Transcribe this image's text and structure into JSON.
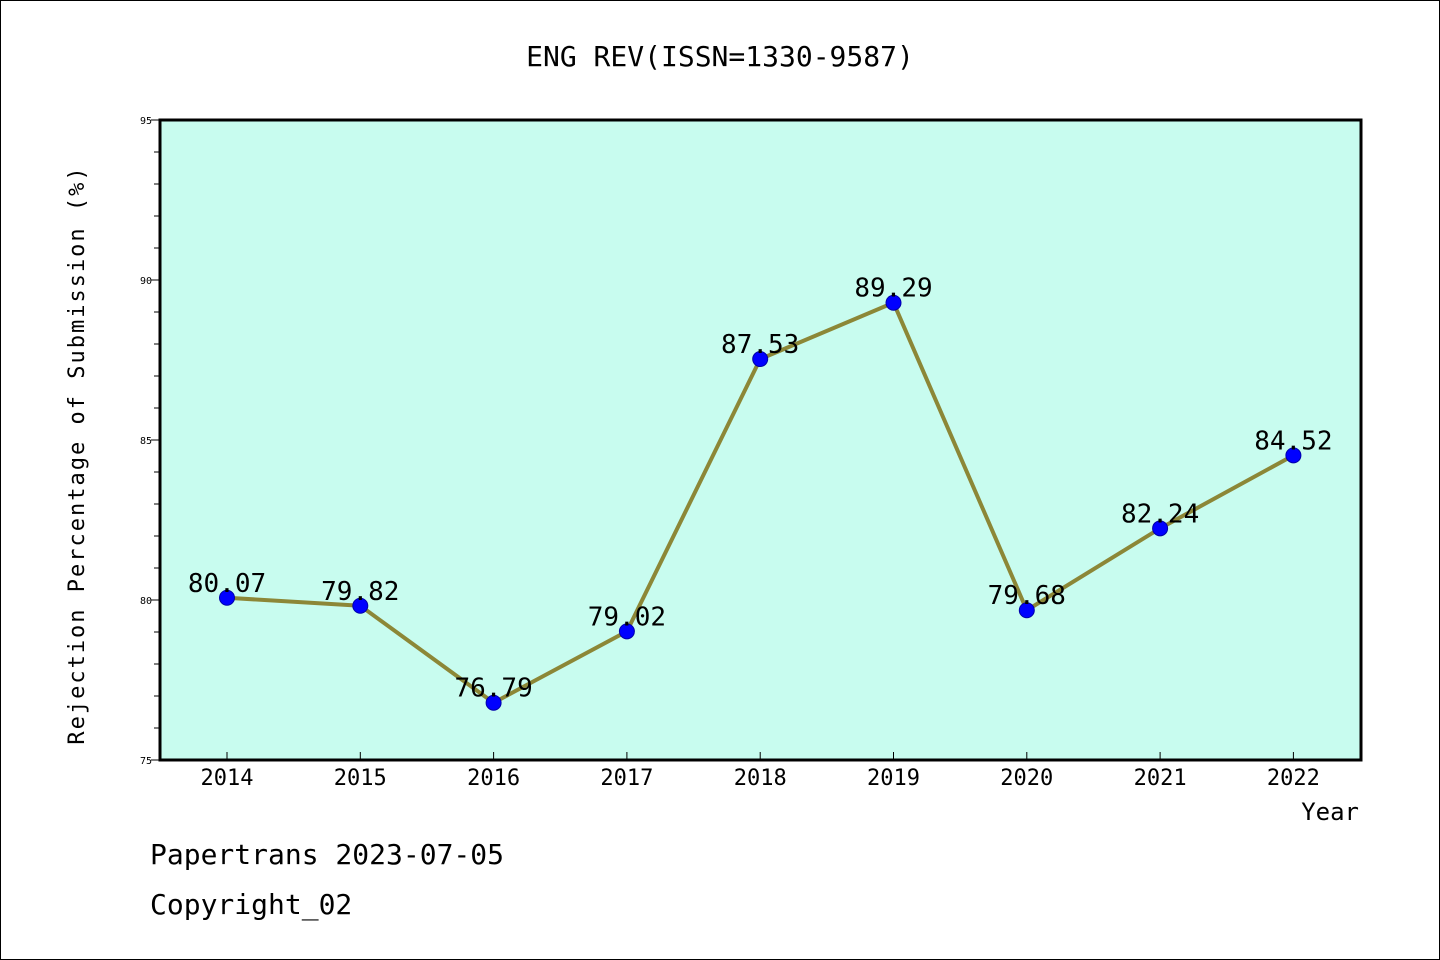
{
  "chart_data": {
    "type": "line",
    "title": "ENG REV(ISSN=1330-9587)",
    "xlabel": "Year",
    "ylabel": "Rejection Percentage of Submission (%)",
    "categories": [
      "2014",
      "2015",
      "2016",
      "2017",
      "2018",
      "2019",
      "2020",
      "2021",
      "2022"
    ],
    "series": [
      {
        "values": [
          80.07,
          79.82,
          76.79,
          79.02,
          87.53,
          89.29,
          79.68,
          82.24,
          84.52
        ],
        "data_labels": [
          "80.07",
          "79.82",
          "76.79",
          "79.02",
          "87.53",
          "89.29",
          "79.68",
          "82.24",
          "84.52"
        ]
      }
    ],
    "ylim": [
      75,
      95
    ],
    "yticks": [
      "75",
      "80",
      "85",
      "90",
      "95"
    ],
    "grid": false,
    "colors": {
      "plot_background": "#c8fcef",
      "line": "#8c8737",
      "marker": "#0000ff"
    }
  },
  "footer": {
    "line1": "Papertrans 2023-07-05",
    "line2": "Copyright_02"
  }
}
